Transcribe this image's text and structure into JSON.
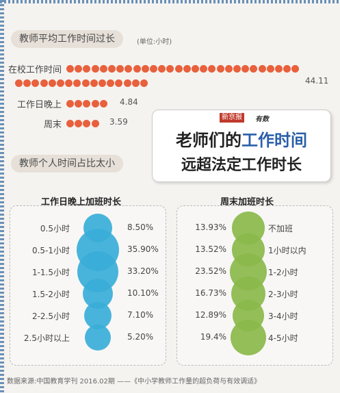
{
  "section1": {
    "title": "教师平均工作时间过长",
    "unit": "(单位:小时)"
  },
  "work_hours": {
    "rows": [
      {
        "label": "在校工作时间",
        "value": "44.11"
      },
      {
        "label": "工作日晚上",
        "value": "4.84"
      },
      {
        "label": "周末",
        "value": "3.59"
      }
    ]
  },
  "headline": {
    "brand": "新京报",
    "brand2": "有数",
    "line1_prefix": "老师们的",
    "line1_highlight": "工作时间",
    "line2": "远超法定工作时长"
  },
  "section2": {
    "title": "教师个人时间占比太小"
  },
  "chart_data": [
    {
      "type": "bar",
      "title": "",
      "xlabel": "",
      "ylabel": "",
      "categories": [
        "在校工作时间",
        "工作日晚上",
        "周末"
      ],
      "values": [
        44.11,
        4.84,
        3.59
      ],
      "unit": "(单位:小时)"
    },
    {
      "type": "scatter",
      "title": "工作日晚上加班时长",
      "categories": [
        "0.5小时",
        "0.5-1小时",
        "1-1.5小时",
        "1.5-2小时",
        "2-2.5小时",
        "2.5小时以上"
      ],
      "values": [
        8.5,
        35.9,
        33.2,
        10.1,
        7.1,
        5.2
      ],
      "labels": [
        "8.50%",
        "35.90%",
        "33.20%",
        "10.10%",
        "7.10%",
        "5.20%"
      ],
      "color": "#3aaed8"
    },
    {
      "type": "scatter",
      "title": "周末加班时长",
      "categories": [
        "不加班",
        "1小时以内",
        "1-2小时",
        "2-3小时",
        "3-4小时",
        "4-5小时"
      ],
      "values": [
        13.93,
        13.52,
        23.52,
        16.73,
        12.89,
        19.4
      ],
      "labels": [
        "13.93%",
        "13.52%",
        "23.52%",
        "16.73%",
        "12.89%",
        "19.4%"
      ],
      "color": "#8ab84a"
    }
  ],
  "footer": {
    "source": "数据来源:中国教育学刊 2016.02期 ——《中小学教师工作量的超负荷与有效调适》"
  }
}
